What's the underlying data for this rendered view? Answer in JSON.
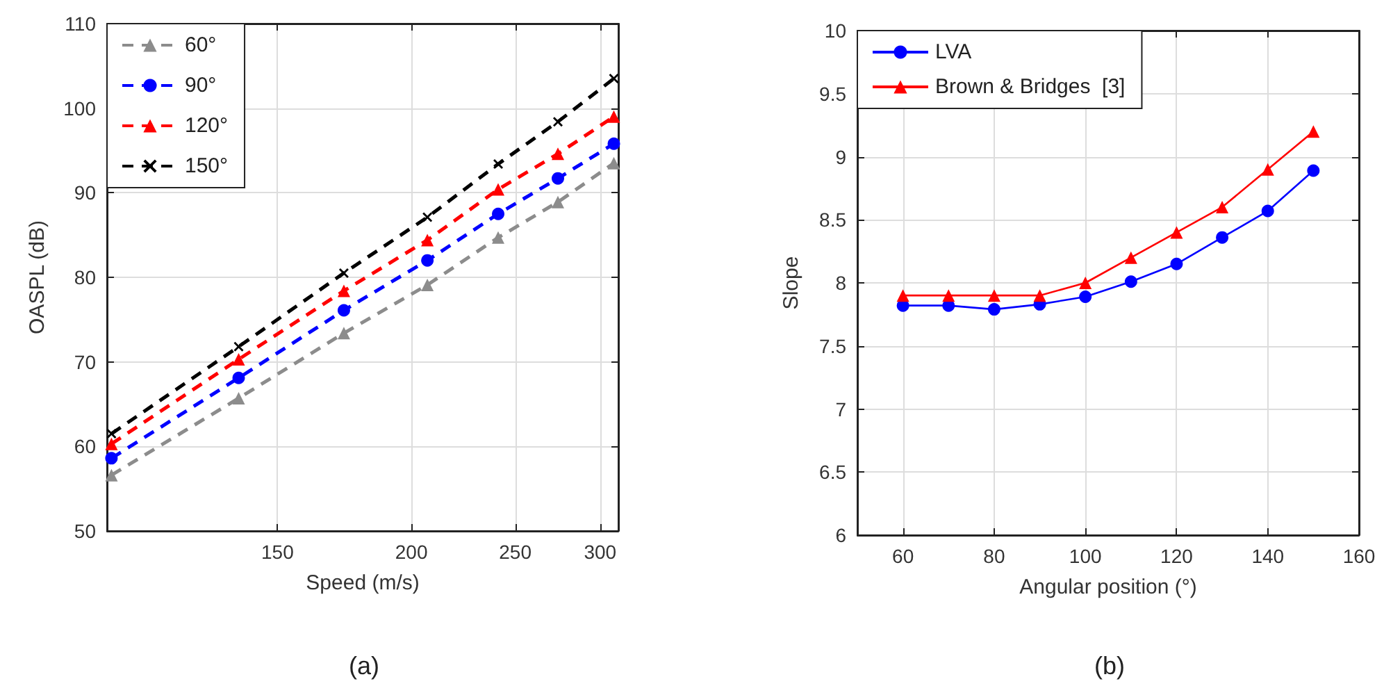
{
  "chart_data": [
    {
      "type": "line",
      "xlabel": "Speed (m/s)",
      "ylabel": "OASPL (dB)",
      "annotations": [
        "(a)"
      ],
      "log": "x",
      "x": [
        105,
        138,
        173,
        207,
        241,
        274,
        309
      ],
      "xlim": [
        104,
        312
      ],
      "xticks": [
        150,
        200,
        250,
        300
      ],
      "ylim": [
        50,
        110
      ],
      "yticks": [
        50,
        60,
        70,
        80,
        90,
        100,
        110
      ],
      "grid": true,
      "legend": "top left",
      "line_style": "dashed",
      "series": [
        {
          "name": "60°",
          "color": "#8c8c8c",
          "marker": "triangle",
          "values": [
            56.6,
            65.7,
            73.4,
            79.1,
            84.7,
            88.9,
            93.5
          ]
        },
        {
          "name": "90°",
          "color": "#0000ff",
          "marker": "circle",
          "values": [
            58.6,
            68.1,
            76.1,
            82.0,
            87.5,
            91.7,
            95.8
          ]
        },
        {
          "name": "120°",
          "color": "#ff0000",
          "marker": "triangle",
          "values": [
            60.3,
            70.3,
            78.4,
            84.4,
            90.4,
            94.6,
            99.0
          ]
        },
        {
          "name": "150°",
          "color": "#000000",
          "marker": "cross",
          "values": [
            61.5,
            71.8,
            80.5,
            87.1,
            93.4,
            98.4,
            103.5
          ]
        }
      ]
    },
    {
      "type": "line",
      "xlabel": "Angular position (°)",
      "ylabel": "Slope",
      "annotations": [
        "(b)"
      ],
      "x": [
        60,
        70,
        80,
        90,
        100,
        110,
        120,
        130,
        140,
        150
      ],
      "xlim": [
        50,
        160
      ],
      "xticks": [
        60,
        80,
        100,
        120,
        140,
        160
      ],
      "ylim": [
        6,
        10
      ],
      "yticks": [
        6,
        6.5,
        7,
        7.5,
        8,
        8.5,
        9,
        9.5,
        10
      ],
      "grid": true,
      "legend": "top left",
      "line_style": "solid",
      "series": [
        {
          "name": "LVA",
          "color": "#0000ff",
          "marker": "circle",
          "values": [
            7.82,
            7.82,
            7.79,
            7.83,
            7.89,
            8.01,
            8.15,
            8.36,
            8.57,
            8.89
          ]
        },
        {
          "name": "Brown & Bridges  [3]",
          "color": "#ff0000",
          "marker": "triangle",
          "values": [
            7.9,
            7.9,
            7.9,
            7.9,
            8.0,
            8.2,
            8.4,
            8.6,
            8.9,
            9.2
          ]
        }
      ]
    }
  ]
}
